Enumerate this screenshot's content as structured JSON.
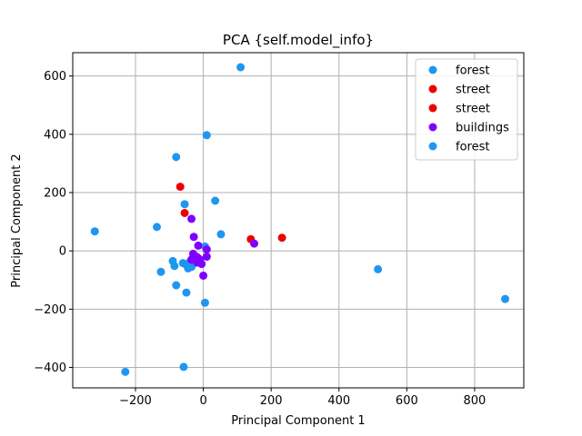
{
  "chart_data": {
    "type": "scatter",
    "title": "PCA {self.model_info}",
    "xlabel": "Principal Component 1",
    "ylabel": "Principal Component 2",
    "xlim": [
      -385,
      945
    ],
    "ylim": [
      -470,
      680
    ],
    "xticks": [
      -200,
      0,
      200,
      400,
      600,
      800
    ],
    "yticks": [
      -400,
      -200,
      0,
      200,
      400,
      600
    ],
    "grid": true,
    "legend_position": "top-right",
    "legend": [
      {
        "label": "forest",
        "color": "#1f96f0"
      },
      {
        "label": "street",
        "color": "#ee0000"
      },
      {
        "label": "street",
        "color": "#ee0000"
      },
      {
        "label": "buildings",
        "color": "#7f00ff"
      },
      {
        "label": "forest",
        "color": "#1f96f0"
      }
    ],
    "series": [
      {
        "label": "forest",
        "color": "#1f96f0",
        "points": [
          [
            110,
            630
          ],
          [
            10,
            397
          ],
          [
            -80,
            322
          ],
          [
            -55,
            160
          ],
          [
            35,
            172
          ],
          [
            -137,
            82
          ],
          [
            -320,
            67
          ],
          [
            52,
            57
          ],
          [
            5,
            15
          ],
          [
            -90,
            -35
          ],
          [
            -85,
            -52
          ],
          [
            -125,
            -72
          ],
          [
            -60,
            -42
          ],
          [
            -50,
            -48
          ],
          [
            -45,
            -60
          ],
          [
            -35,
            -55
          ],
          [
            -30,
            -45
          ],
          [
            -40,
            -38
          ],
          [
            -80,
            -118
          ],
          [
            -50,
            -143
          ],
          [
            5,
            -178
          ],
          [
            515,
            -63
          ],
          [
            890,
            -165
          ],
          [
            -230,
            -415
          ],
          [
            -58,
            -398
          ]
        ]
      },
      {
        "label": "street",
        "color": "#ee0000",
        "points": [
          [
            -68,
            220
          ],
          [
            -55,
            130
          ],
          [
            140,
            40
          ],
          [
            232,
            45
          ],
          [
            -25,
            -18
          ],
          [
            -15,
            -25
          ]
        ]
      },
      {
        "label": "buildings",
        "color": "#7f00ff",
        "points": [
          [
            -35,
            110
          ],
          [
            -28,
            48
          ],
          [
            150,
            25
          ],
          [
            -15,
            18
          ],
          [
            10,
            5
          ],
          [
            -30,
            -10
          ],
          [
            -20,
            -20
          ],
          [
            -10,
            -30
          ],
          [
            -18,
            -40
          ],
          [
            -5,
            -45
          ],
          [
            10,
            -20
          ],
          [
            0,
            -85
          ],
          [
            -35,
            -30
          ]
        ]
      }
    ]
  }
}
